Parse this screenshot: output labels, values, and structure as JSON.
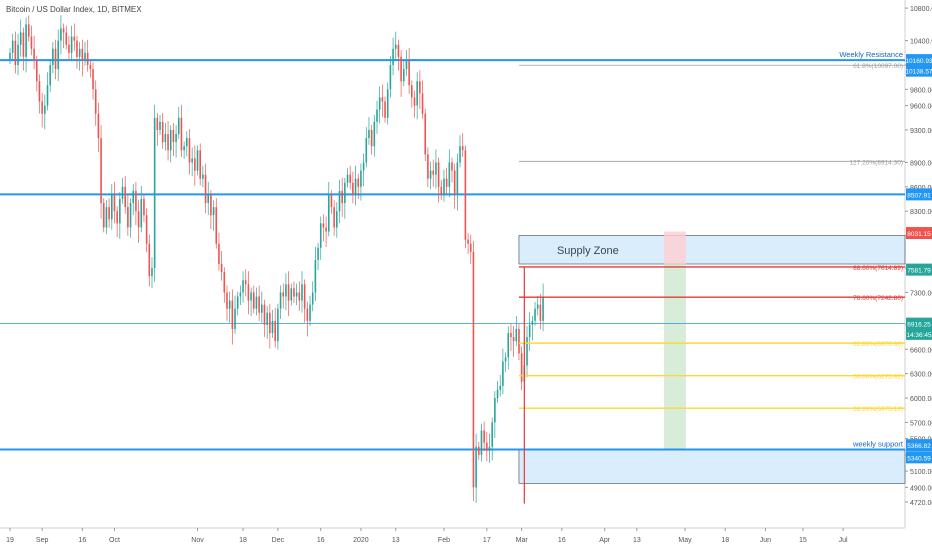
{
  "title": "Bitcoin / US Dollar Index, 1D, BITMEX",
  "colors": {
    "up": "#26a69a",
    "down": "#ef5350",
    "resistance_line": "#2196f3",
    "supply_zone_fill": "#bbdefb",
    "support_zone_fill": "#bbdefb",
    "red_line": "#e53935",
    "yellow_line": "#ffeb3b",
    "green_zone": "#c8e6c9",
    "red_zone": "#ffcdd2"
  },
  "chart_data": {
    "type": "candlestick",
    "ylim": [
      4400,
      10900
    ],
    "y_ticks": [
      4720,
      4900,
      5100,
      5300,
      5500,
      5700,
      6000,
      6300,
      6600,
      6900,
      7300,
      7600,
      8000,
      8300,
      8600,
      8900,
      9300,
      9600,
      9800,
      10100,
      10400,
      10800
    ],
    "x_tick_labels": [
      {
        "label": "19",
        "index": 0
      },
      {
        "label": "Sep",
        "index": 12
      },
      {
        "label": "16",
        "index": 27
      },
      {
        "label": "Oct",
        "index": 39
      },
      {
        "label": "Nov",
        "index": 70
      },
      {
        "label": "18",
        "index": 87
      },
      {
        "label": "Dec",
        "index": 100
      },
      {
        "label": "16",
        "index": 116
      },
      {
        "label": "2020",
        "index": 131
      },
      {
        "label": "13",
        "index": 144
      },
      {
        "label": "Feb",
        "index": 162
      },
      {
        "label": "17",
        "index": 178
      },
      {
        "label": "Mar",
        "index": 191
      },
      {
        "label": "16",
        "index": 206
      },
      {
        "label": "Apr",
        "index": 222
      },
      {
        "label": "13",
        "index": 234
      },
      {
        "label": "May",
        "index": 252
      },
      {
        "label": "18",
        "index": 267
      },
      {
        "label": "Jun",
        "index": 282
      },
      {
        "label": "15",
        "index": 296
      },
      {
        "label": "Jul",
        "index": 311
      }
    ],
    "horizontal_levels": [
      {
        "name": "weekly-resistance",
        "label": "Weekly Resistance",
        "price": 10160,
        "style": "blue-thick"
      },
      {
        "name": "level-8507",
        "price": 8507,
        "style": "blue-thick"
      },
      {
        "name": "level-6916",
        "price": 6916,
        "style": "blue-thin"
      },
      {
        "name": "weekly-support",
        "label": "weekly support",
        "price": 5366,
        "style": "blue-thick"
      }
    ],
    "fib_levels": [
      {
        "label": "61.8%(10097.00)",
        "price": 10097,
        "color": "#9e9e9e"
      },
      {
        "label": "127.20%(8914.30)",
        "price": 8914,
        "color": "#9e9e9e"
      },
      {
        "label": "88.60%(7614.89)",
        "price": 7614,
        "color": "#e53935"
      },
      {
        "label": "78.60%(7242.80)",
        "price": 7242,
        "color": "#e53935"
      },
      {
        "label": "61.80%(6676.66)",
        "price": 6676,
        "color": "#fdd835"
      },
      {
        "label": "50.00%(6275.92)",
        "price": 6275,
        "color": "#fdd835"
      },
      {
        "label": "38.20%(5875.19)",
        "price": 5875,
        "color": "#fdd835"
      }
    ],
    "zones": [
      {
        "name": "supply-zone",
        "label": "Supply Zone",
        "top": 8000,
        "bottom": 7650
      },
      {
        "name": "support-zone",
        "label": "",
        "top": 5366,
        "bottom": 4950
      }
    ],
    "price_labels": [
      {
        "text": "10160.93",
        "price": 10160,
        "color": "#2196f3"
      },
      {
        "text": "10138.57",
        "price": 10030,
        "color": "#2196f3"
      },
      {
        "text": "8507.91",
        "price": 8507,
        "color": "#2196f3"
      },
      {
        "text": "8031.15",
        "price": 8031,
        "color": "#ef5350"
      },
      {
        "text": "7581.79",
        "price": 7581,
        "color": "#26a69a"
      },
      {
        "text": "6916.25",
        "price": 6916,
        "color": "#26a69a"
      },
      {
        "text": "14:36:45",
        "price": 6790,
        "color": "#26a69a"
      },
      {
        "text": "5366.82",
        "price": 5420,
        "color": "#2196f3"
      },
      {
        "text": "5340.59",
        "price": 5270,
        "color": "#2196f3"
      }
    ],
    "closes": [
      10250,
      10400,
      10100,
      10350,
      10500,
      10200,
      10600,
      10450,
      10300,
      10150,
      9900,
      9650,
      9500,
      9600,
      9850,
      10100,
      10300,
      10050,
      10400,
      10550,
      10500,
      10350,
      10250,
      10450,
      10400,
      10200,
      10300,
      10150,
      10250,
      10100,
      10050,
      9800,
      9500,
      9200,
      8400,
      8100,
      8350,
      8200,
      8500,
      8300,
      8150,
      8450,
      8600,
      8350,
      8100,
      8400,
      8550,
      8300,
      8100,
      8450,
      8250,
      7900,
      7500,
      7600,
      9450,
      9300,
      9400,
      9150,
      9250,
      9050,
      9300,
      9150,
      9250,
      9450,
      9050,
      9100,
      9200,
      8900,
      8950,
      8800,
      9050,
      8700,
      8750,
      8400,
      8500,
      8250,
      8350,
      7900,
      7650,
      7550,
      7300,
      7100,
      7200,
      6850,
      7100,
      7250,
      7300,
      7450,
      7400,
      7200,
      7300,
      7100,
      7250,
      7050,
      7150,
      6900,
      7050,
      6800,
      6950,
      6700,
      7100,
      7300,
      7250,
      7400,
      7200,
      7350,
      7250,
      7300,
      7200,
      7400,
      7100,
      6950,
      7150,
      7300,
      7700,
      7850,
      8150,
      8100,
      8050,
      8500,
      8350,
      8100,
      8300,
      8550,
      8400,
      8650,
      8750,
      8650,
      8500,
      8700,
      8600,
      8800,
      8900,
      9200,
      9300,
      9100,
      9400,
      9550,
      9700,
      9650,
      9450,
      9800,
      10100,
      10300,
      10350,
      10200,
      9900,
      10050,
      10150,
      9850,
      9700,
      9600,
      9900,
      9750,
      9500,
      9000,
      8700,
      8800,
      8750,
      8900,
      8600,
      8500,
      8700,
      8600,
      8900,
      8800,
      8500,
      8900,
      9100,
      9050,
      7950,
      7900,
      7800,
      4900,
      5400,
      5300,
      5600,
      5450,
      5350,
      5400,
      5700,
      6000,
      6100,
      6150,
      6450,
      6500,
      6800,
      6750,
      6700,
      6850,
      6550,
      6200,
      6400,
      6750,
      6900,
      6950,
      7100,
      7150,
      6950,
      7250
    ],
    "series_note": ""
  }
}
